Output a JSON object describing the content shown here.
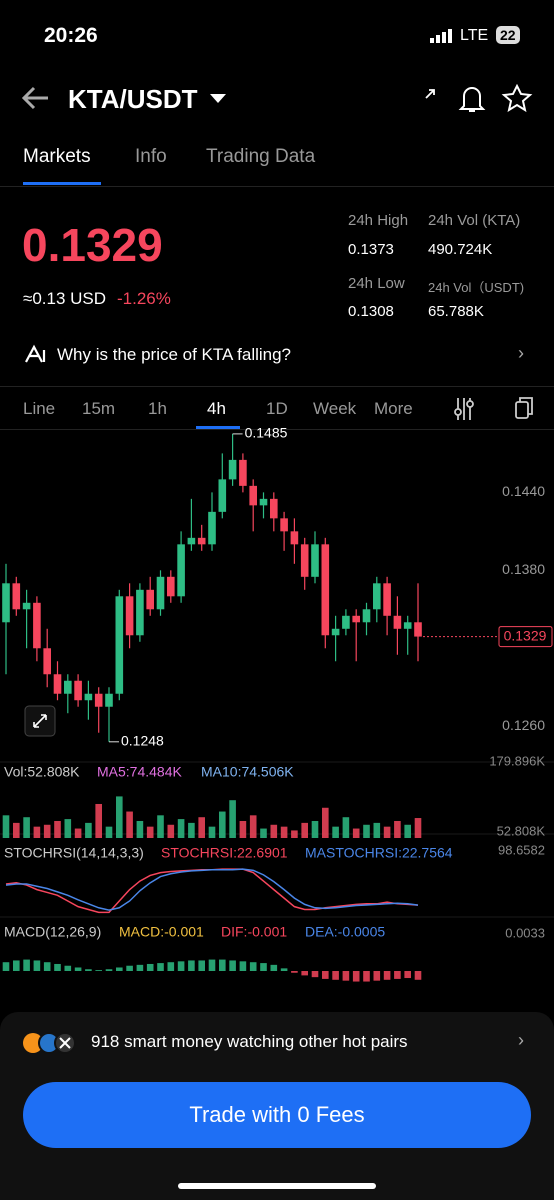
{
  "status": {
    "time": "20:26",
    "network": "LTE",
    "battery": "22"
  },
  "header": {
    "pair": "KTA/USDT"
  },
  "tabs": [
    "Markets",
    "Info",
    "Trading Data"
  ],
  "price": {
    "last": "0.1329",
    "usd": "≈0.13 USD",
    "change": "-1.26%"
  },
  "stats": {
    "high_label": "24h High",
    "high": "0.1373",
    "vol_kta_label": "24h Vol (KTA)",
    "vol_kta": "490.724K",
    "low_label": "24h Low",
    "low": "0.1308",
    "vol_usdt_label": "24h Vol（USDT)",
    "vol_usdt": "65.788K"
  },
  "insight": "Why is the price of KTA falling?",
  "intervals": [
    "Line",
    "15m",
    "1h",
    "4h",
    "1D",
    "Week",
    "More"
  ],
  "chart_data": [
    {
      "type": "candlestick",
      "up_color": "#2ebd85",
      "down_color": "#f6465d",
      "open": [
        0.134,
        0.137,
        0.135,
        0.1355,
        0.132,
        0.13,
        0.1285,
        0.1295,
        0.128,
        0.1285,
        0.1275,
        0.1285,
        0.136,
        0.133,
        0.1365,
        0.135,
        0.1375,
        0.136,
        0.14,
        0.1405,
        0.14,
        0.1425,
        0.145,
        0.1465,
        0.1445,
        0.143,
        0.1435,
        0.142,
        0.141,
        0.14,
        0.1375,
        0.14,
        0.133,
        0.1335,
        0.1345,
        0.134,
        0.135,
        0.137,
        0.1345,
        0.1335,
        0.134
      ],
      "high": [
        0.1385,
        0.1375,
        0.1365,
        0.136,
        0.1335,
        0.131,
        0.13,
        0.13,
        0.1295,
        0.129,
        0.129,
        0.1365,
        0.137,
        0.137,
        0.1375,
        0.138,
        0.138,
        0.141,
        0.1435,
        0.1415,
        0.144,
        0.147,
        0.1485,
        0.147,
        0.145,
        0.144,
        0.144,
        0.1425,
        0.142,
        0.1405,
        0.141,
        0.1405,
        0.1345,
        0.135,
        0.135,
        0.1355,
        0.1375,
        0.1375,
        0.136,
        0.1345,
        0.137
      ],
      "low": [
        0.13,
        0.1345,
        0.132,
        0.131,
        0.129,
        0.128,
        0.127,
        0.1275,
        0.1265,
        0.1255,
        0.1248,
        0.128,
        0.132,
        0.1325,
        0.1345,
        0.1345,
        0.1355,
        0.1355,
        0.1395,
        0.1395,
        0.1395,
        0.142,
        0.1445,
        0.144,
        0.141,
        0.142,
        0.141,
        0.1395,
        0.1385,
        0.1365,
        0.137,
        0.132,
        0.131,
        0.133,
        0.131,
        0.133,
        0.134,
        0.133,
        0.1315,
        0.1315,
        0.131
      ],
      "close": [
        0.137,
        0.135,
        0.1355,
        0.132,
        0.13,
        0.1285,
        0.1295,
        0.128,
        0.1285,
        0.1275,
        0.1285,
        0.136,
        0.133,
        0.1365,
        0.135,
        0.1375,
        0.136,
        0.14,
        0.1405,
        0.14,
        0.1425,
        0.145,
        0.1465,
        0.1445,
        0.143,
        0.1435,
        0.142,
        0.141,
        0.14,
        0.1375,
        0.14,
        0.133,
        0.1335,
        0.1345,
        0.134,
        0.135,
        0.137,
        0.1345,
        0.1335,
        0.134,
        0.1329
      ],
      "ylim": [
        0.1234,
        0.1488
      ],
      "yticks": [
        {
          "value": 0.144,
          "label": "0.1440"
        },
        {
          "value": 0.138,
          "label": "0.1380"
        },
        {
          "value": 0.126,
          "label": "0.1260"
        }
      ],
      "last_price": {
        "value": 0.1329,
        "label": "0.1329"
      },
      "high_marker": {
        "value": 0.1485,
        "label": "0.1485"
      },
      "low_marker": {
        "value": 0.1248,
        "label": "0.1248"
      }
    },
    {
      "type": "bar",
      "legend": [
        "Vol:52.808K",
        "MA5:74.484K",
        "MA10:74.506K"
      ],
      "values": [
        60,
        40,
        55,
        30,
        35,
        45,
        50,
        25,
        40,
        90,
        30,
        110,
        70,
        45,
        30,
        60,
        35,
        50,
        40,
        55,
        30,
        70,
        100,
        45,
        60,
        25,
        35,
        30,
        20,
        40,
        45,
        80,
        30,
        55,
        25,
        35,
        40,
        30,
        45,
        35,
        52.808
      ],
      "ylim": [
        0,
        179.896
      ],
      "yticks": [
        {
          "value": 179.896,
          "label": "179.896K"
        },
        {
          "value": 52.808,
          "label": "52.808K"
        }
      ]
    },
    {
      "type": "line",
      "title": "STOCHRSI(14,14,3,3)",
      "series": [
        {
          "name": "STOCHRSI:22.6901",
          "color": "#f6465d",
          "values": [
            60,
            62,
            58,
            50,
            45,
            40,
            30,
            20,
            15,
            10,
            10,
            30,
            50,
            65,
            75,
            80,
            82,
            83,
            84,
            85,
            85,
            86,
            86,
            86,
            80,
            65,
            50,
            35,
            20,
            15,
            15,
            18,
            20,
            22,
            24,
            25,
            25,
            28,
            25,
            24,
            22.6901
          ]
        },
        {
          "name": "MASTOCHRSI:22.7564",
          "color": "#4a86e8",
          "values": [
            58,
            60,
            60,
            56,
            52,
            46,
            40,
            32,
            25,
            18,
            14,
            18,
            30,
            48,
            62,
            73,
            78,
            81,
            83,
            84,
            85,
            85,
            85,
            86,
            84,
            76,
            64,
            50,
            35,
            24,
            18,
            17,
            18,
            20,
            22,
            23,
            24,
            25,
            26,
            25,
            22.7564
          ]
        }
      ],
      "ylim": [
        0,
        98.6582
      ],
      "yticks": [
        {
          "value": 98.6582,
          "label": "98.6582"
        }
      ]
    },
    {
      "type": "bar",
      "title": "MACD(12,26,9)",
      "legend": [
        "MACD:-0.001",
        "DIF:-0.001",
        "DEA:-0.0005"
      ],
      "values": [
        0.001,
        0.0012,
        0.0013,
        0.0012,
        0.001,
        0.0008,
        0.0006,
        0.0004,
        0.0002,
        0.0001,
        0.0002,
        0.0004,
        0.0006,
        0.0007,
        0.0008,
        0.0009,
        0.001,
        0.0011,
        0.0012,
        0.0012,
        0.0013,
        0.0013,
        0.0012,
        0.0011,
        0.001,
        0.0009,
        0.0007,
        0.0003,
        -0.0002,
        -0.0005,
        -0.0007,
        -0.0009,
        -0.001,
        -0.0011,
        -0.0012,
        -0.0012,
        -0.0011,
        -0.001,
        -0.0009,
        -0.0008,
        -0.001
      ],
      "ylim": [
        -0.0033,
        0.0033
      ],
      "yticks": [
        {
          "value": 0.0033,
          "label": "0.0033"
        }
      ]
    }
  ],
  "promo": "918 smart money watching other hot pairs",
  "button": "Trade with 0 Fees"
}
